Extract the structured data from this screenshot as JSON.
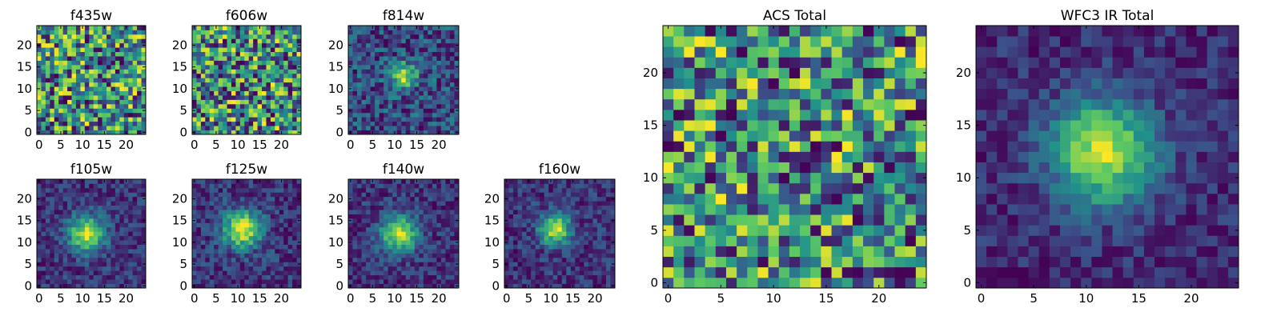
{
  "colors": {
    "cmap": [
      "#440154",
      "#3b528b",
      "#21918c",
      "#5ec962",
      "#fde725"
    ]
  },
  "chart_data": [
    {
      "type": "heatmap",
      "title": "f435w",
      "rows": 25,
      "cols": 25,
      "xticks": [
        0,
        5,
        10,
        15,
        20
      ],
      "yticks": [
        0,
        5,
        10,
        15,
        20
      ],
      "peak": null,
      "sigma": 0,
      "noise": 0.28,
      "base": 0.6,
      "seed": 11
    },
    {
      "type": "heatmap",
      "title": "f606w",
      "rows": 25,
      "cols": 25,
      "xticks": [
        0,
        5,
        10,
        15,
        20
      ],
      "yticks": [
        0,
        5,
        10,
        15,
        20
      ],
      "peak": null,
      "sigma": 0,
      "noise": 0.3,
      "base": 0.62,
      "seed": 23
    },
    {
      "type": "heatmap",
      "title": "f814w",
      "rows": 25,
      "cols": 25,
      "xticks": [
        0,
        5,
        10,
        15,
        20
      ],
      "yticks": [
        0,
        5,
        10,
        15,
        20
      ],
      "peak": [
        12,
        13
      ],
      "sigma": 2.0,
      "noise": 0.28,
      "base": 0.58,
      "seed": 37
    },
    {
      "type": "heatmap",
      "title": "f105w",
      "rows": 25,
      "cols": 25,
      "xticks": [
        0,
        5,
        10,
        15,
        20
      ],
      "yticks": [
        0,
        5,
        10,
        15,
        20
      ],
      "peak": [
        11,
        12
      ],
      "sigma": 3.0,
      "noise": 0.16,
      "base": 0.4,
      "seed": 41
    },
    {
      "type": "heatmap",
      "title": "f125w",
      "rows": 25,
      "cols": 25,
      "xticks": [
        0,
        5,
        10,
        15,
        20
      ],
      "yticks": [
        0,
        5,
        10,
        15,
        20
      ],
      "peak": [
        11,
        13
      ],
      "sigma": 3.0,
      "noise": 0.16,
      "base": 0.4,
      "seed": 53
    },
    {
      "type": "heatmap",
      "title": "f140w",
      "rows": 25,
      "cols": 25,
      "xticks": [
        0,
        5,
        10,
        15,
        20
      ],
      "yticks": [
        0,
        5,
        10,
        15,
        20
      ],
      "peak": [
        11,
        12
      ],
      "sigma": 3.0,
      "noise": 0.16,
      "base": 0.42,
      "seed": 67
    },
    {
      "type": "heatmap",
      "title": "f160w",
      "rows": 25,
      "cols": 25,
      "xticks": [
        0,
        5,
        10,
        15,
        20
      ],
      "yticks": [
        0,
        5,
        10,
        15,
        20
      ],
      "peak": [
        11,
        13
      ],
      "sigma": 2.5,
      "noise": 0.16,
      "base": 0.35,
      "seed": 79
    },
    {
      "type": "heatmap",
      "title": "ACS Total",
      "rows": 25,
      "cols": 25,
      "xticks": [
        0,
        5,
        10,
        15,
        20
      ],
      "yticks": [
        0,
        5,
        10,
        15,
        20
      ],
      "peak": null,
      "sigma": 0,
      "noise": 0.22,
      "base": 0.66,
      "seed": 83
    },
    {
      "type": "heatmap",
      "title": "WFC3 IR Total",
      "rows": 25,
      "cols": 25,
      "xticks": [
        0,
        5,
        10,
        15,
        20
      ],
      "yticks": [
        0,
        5,
        10,
        15,
        20
      ],
      "peak": [
        11.5,
        12.5
      ],
      "sigma": 3.5,
      "noise": 0.12,
      "base": 0.3,
      "seed": 97
    }
  ]
}
